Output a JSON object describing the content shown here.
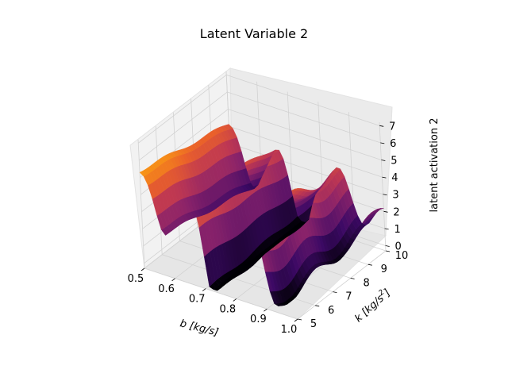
{
  "chart_data": {
    "type": "surface",
    "title": "Latent Variable 2",
    "xlabel": "b [kg/s]",
    "ylabel_base": "k [kg/s",
    "ylabel_sup": "2",
    "ylabel_end": "]",
    "zlabel": "latent activation 2",
    "x_ticks": [
      "0.5",
      "0.6",
      "0.7",
      "0.8",
      "0.9",
      "1.0"
    ],
    "y_ticks": [
      "5",
      "6",
      "7",
      "8",
      "9",
      "10"
    ],
    "z_ticks": [
      "0",
      "1",
      "2",
      "3",
      "4",
      "5",
      "6",
      "7"
    ],
    "xlim": [
      0.5,
      1.0
    ],
    "ylim": [
      5,
      10
    ],
    "zlim": [
      -0.3,
      7.2
    ],
    "colormap": "inferno",
    "grid": true,
    "surface_description": "peaks near b=0.5 (~5.5), ridge along b≈0.66 and b≈0.85 (~5–6), deep valley near b≈0.72 (~0) and b≈0.92 (~0.5)"
  }
}
